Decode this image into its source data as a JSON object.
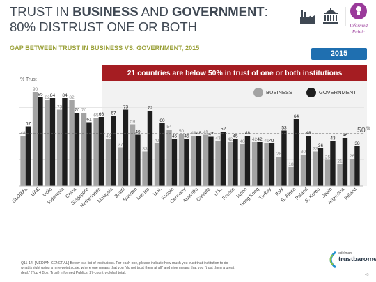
{
  "slide": {
    "title_part1": "TRUST IN ",
    "title_bold1": "BUSINESS",
    "title_part2": " AND ",
    "title_bold2": "GOVERNMENT",
    "title_part3": ":",
    "title_line2": "80% DISTRUST ONE OR BOTH",
    "subtitle": "GAP BETWEEN TRUST IN BUSINESS VS. GOVERNMENT, 2015",
    "year_badge": "2015",
    "banner": "21 countries are below 50% in trust of one or both institutions",
    "y_axis_label": "% Trust",
    "reference_label": "50",
    "reference_sup": "%",
    "footnote_line1": "Q11-14. [MEDIAN GENERAL] Below is a list of institutions. For each one, please indicate how much you trust that institution to do",
    "footnote_line2": "what is right using a nine-point scale, where one means that you \"do not trust them at all\" and nine means that you \"trust them a great",
    "footnote_line3": "deal.\" (Top 4 Box, Trust) Informed Publics, 27-country global total.",
    "logo_text_line1": "Informed",
    "logo_text_line2": "Public",
    "footer_logo_small": "edelman",
    "footer_logo_main": "trustbarometer",
    "page_number": "45"
  },
  "colors": {
    "business": "#a3a3a3",
    "government": "#1e1e1e",
    "banner": "#a51d22",
    "badge": "#1f6fb0",
    "subtitle": "#9aa038",
    "title": "#3f4853"
  },
  "icons": [
    "factory-icon",
    "government-building-icon",
    "lightbulb-icon",
    "person-icon"
  ],
  "chart_data": {
    "type": "bar",
    "title": "",
    "xlabel": "",
    "ylabel": "% Trust",
    "ylim": [
      0,
      100
    ],
    "reference_line": 50,
    "legend": "top-right",
    "categories": [
      "GLOBAL",
      "UAE",
      "India",
      "Indonesia",
      "China",
      "Singapore",
      "Netherlands",
      "Malaysia",
      "Brazil",
      "Sweden",
      "Mexico",
      "U.S.",
      "Russia",
      "Germany",
      "Australia",
      "Canada",
      "U.K.",
      "France",
      "Japan",
      "Hong Kong",
      "Turkey",
      "Italy",
      "S. Africa",
      "Poland",
      "S. Korea",
      "Spain",
      "Argentina",
      "Ireland"
    ],
    "series": [
      {
        "name": "BUSINESS",
        "values": [
          48,
          90,
          82,
          73,
          82,
          70,
          65,
          45,
          37,
          59,
          33,
          41,
          54,
          50,
          48,
          49,
          43,
          42,
          40,
          42,
          41,
          28,
          18,
          30,
          33,
          25,
          21,
          26
        ]
      },
      {
        "name": "GOVERNMENT",
        "values": [
          57,
          85,
          84,
          84,
          70,
          61,
          66,
          67,
          73,
          49,
          72,
          60,
          45,
          45,
          48,
          47,
          52,
          45,
          48,
          42,
          41,
          53,
          64,
          48,
          36,
          43,
          46,
          38
        ]
      }
    ]
  }
}
